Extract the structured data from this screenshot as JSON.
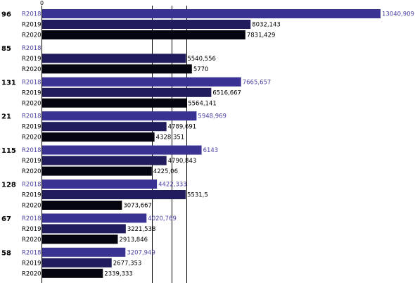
{
  "chart_data": {
    "type": "bar",
    "orientation": "horizontal",
    "title": "",
    "xlabel": "",
    "ylabel": "",
    "xlim": [
      0,
      13040.909
    ],
    "zero_tick_label": "0",
    "grid": true,
    "categories": [
      "96",
      "85",
      "131",
      "21",
      "115",
      "128",
      "67",
      "58"
    ],
    "series": [
      {
        "name": "R2018",
        "color": "#3b3394",
        "label_color": "#4a43a6",
        "values": [
          13040.909,
          null,
          7665.657,
          5948.969,
          6143,
          4422.333,
          4020.769,
          3207.949
        ],
        "labels": [
          "13040,909",
          "",
          "7665,657",
          "5948,969",
          "6143",
          "4422,333",
          "4020,769",
          "3207,949"
        ]
      },
      {
        "name": "R2019",
        "color": "#211c5c",
        "label_color": "#000000",
        "values": [
          8032.143,
          5540.556,
          6516.667,
          4789.691,
          4790.843,
          5531.5,
          3221.538,
          2677.353
        ],
        "labels": [
          "8032,143",
          "5540,556",
          "6516,667",
          "4789,691",
          "4790,843",
          "5531,5",
          "3221,538",
          "2677,353"
        ]
      },
      {
        "name": "R2020",
        "color": "#05050f",
        "label_color": "#000000",
        "values": [
          7831.429,
          5770,
          5564.141,
          4328.351,
          4225.06,
          3073.667,
          2913.846,
          2339.333
        ],
        "labels": [
          "7831,429",
          "5770",
          "5564,141",
          "4328,351",
          "4225,06",
          "3073,667",
          "2913,846",
          "2339,333"
        ]
      }
    ],
    "reference_lines": [
      4225.06,
      5000,
      5564.141
    ]
  }
}
